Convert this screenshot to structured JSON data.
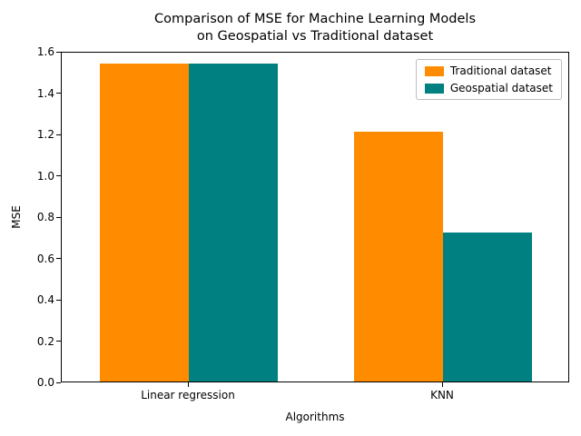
{
  "chart_data": {
    "type": "bar",
    "title": "Comparison of MSE for Machine Learning Models\non Geospatial vs Traditional dataset",
    "xlabel": "Algorithms",
    "ylabel": "MSE",
    "categories": [
      "Linear regression",
      "KNN"
    ],
    "series": [
      {
        "name": "Traditional dataset",
        "color": "#ff8c00",
        "values": [
          1.54,
          1.21
        ]
      },
      {
        "name": "Geospatial dataset",
        "color": "#008080",
        "values": [
          1.54,
          0.72
        ]
      }
    ],
    "ylim": [
      0,
      1.6
    ],
    "yticks": [
      0.0,
      0.2,
      0.4,
      0.6,
      0.8,
      1.0,
      1.2,
      1.4,
      1.6
    ],
    "grid": false,
    "legend_position": "upper right"
  }
}
